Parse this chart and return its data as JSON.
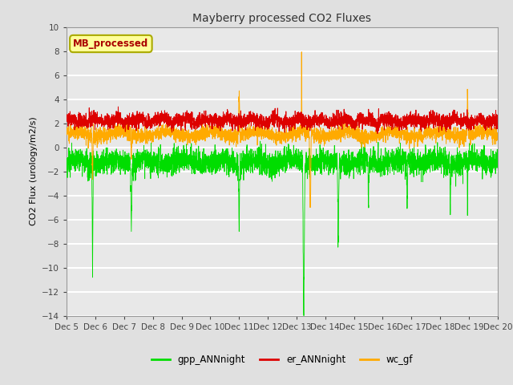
{
  "title": "Mayberry processed CO2 Fluxes",
  "ylabel": "CO2 Flux (urology/m2/s)",
  "ylim": [
    -14,
    10
  ],
  "yticks": [
    -14,
    -12,
    -10,
    -8,
    -6,
    -4,
    -2,
    0,
    2,
    4,
    6,
    8,
    10
  ],
  "xlabel_dates": [
    "Dec 5",
    "Dec 6",
    "Dec 7",
    "Dec 8",
    "Dec 9",
    "Dec 10",
    "Dec 11",
    "Dec 12",
    "Dec 13",
    "Dec 14",
    "Dec 15",
    "Dec 16",
    "Dec 17",
    "Dec 18",
    "Dec 19",
    "Dec 20"
  ],
  "color_gpp": "#00dd00",
  "color_er": "#dd0000",
  "color_wc": "#ffaa00",
  "legend_label_gpp": "gpp_ANNnight",
  "legend_label_er": "er_ANNnight",
  "legend_label_wc": "wc_gf",
  "box_label": "MB_processed",
  "box_color": "#ffff99",
  "box_text_color": "#aa0000",
  "box_edge_color": "#aaaa00",
  "bg_color": "#e0e0e0",
  "plot_bg_color": "#e8e8e8",
  "n_points": 4000,
  "seed": 42
}
